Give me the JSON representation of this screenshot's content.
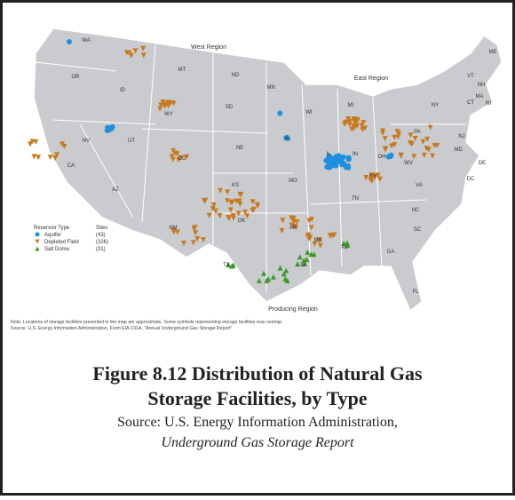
{
  "map": {
    "regions": [
      "West Region",
      "East Region",
      "Producing Region"
    ],
    "states": [
      "WA",
      "OR",
      "ID",
      "MT",
      "ND",
      "MN",
      "WY",
      "SD",
      "NV",
      "UT",
      "CO",
      "NE",
      "IA",
      "WI",
      "MI",
      "CA",
      "AZ",
      "NM",
      "KS",
      "MO",
      "IL",
      "IN",
      "OH",
      "PA",
      "NY",
      "OK",
      "AR",
      "TN",
      "KY",
      "WV",
      "VA",
      "NC",
      "SC",
      "GA",
      "AL",
      "MS",
      "LA",
      "TX",
      "FL",
      "VT",
      "NH",
      "ME",
      "MA",
      "RI",
      "CT",
      "NJ",
      "MD",
      "DE",
      "DC"
    ],
    "legend": {
      "title": "Reservoir Type",
      "count_header": "Sites",
      "items": [
        {
          "name": "Aquifer",
          "count": "(43)",
          "color": "#1f8fe0"
        },
        {
          "name": "Depleted Field",
          "count": "(326)",
          "color": "#c87a1e"
        },
        {
          "name": "Salt Dome",
          "count": "(31)",
          "color": "#3a9a2a"
        }
      ]
    },
    "note": "Note: Locations of storage facilities presented in the map are approximate.  Some symbols representing storage facilities may overlap.",
    "source": "Source: U.S. Energy Information Administration, Form EIA-191A, \"Annual Underground Gas Storage Report\""
  },
  "caption": {
    "title_line1": "Figure 8.12 Distribution of Natural Gas",
    "title_line2": "Storage Facilities, by Type",
    "source_line1": "Source: U.S. Energy Information Administration,",
    "source_line2": "Underground Gas Storage Report"
  }
}
